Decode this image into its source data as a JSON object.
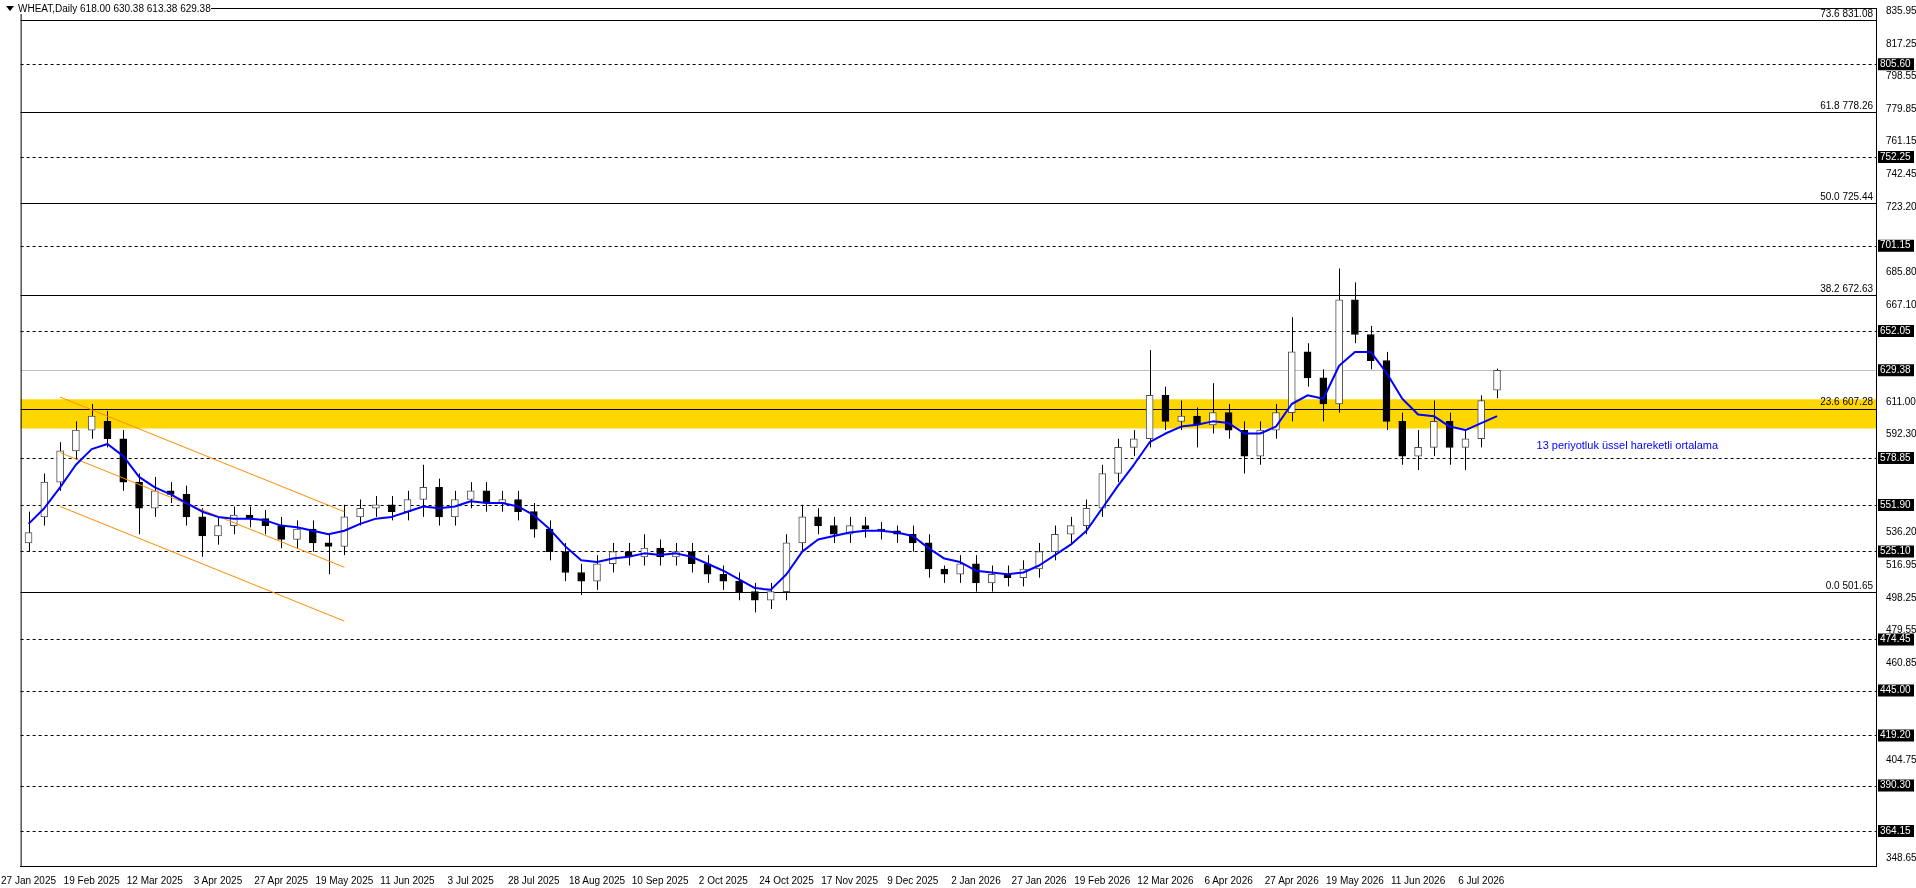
{
  "chart_data": {
    "type": "candlestick",
    "title": "WHEAT,Daily 618.00 630.38 613.38 629.38",
    "categories": [
      "27 Jan 2025",
      null,
      null,
      null,
      "19 Feb 2025",
      null,
      null,
      null,
      "12 Mar 2025",
      null,
      null,
      null,
      "3 Apr 2025",
      null,
      null,
      null,
      "27 Apr 2025",
      null,
      null,
      null,
      "19 May 2025",
      null,
      null,
      null,
      "11 Jun 2025",
      null,
      null,
      null,
      "3 Jul 2025",
      null,
      null,
      null,
      "28 Jul 2025",
      null,
      null,
      null,
      "18 Aug 2025",
      null,
      null,
      null,
      "10 Sep 2025",
      null,
      null,
      null,
      "2 Oct 2025",
      null,
      null,
      null,
      "24 Oct 2025",
      null,
      null,
      null,
      "17 Nov 2025",
      null,
      null,
      null,
      "9 Dec 2025",
      null,
      null,
      null,
      "2 Jan 2026",
      null,
      null,
      null,
      "27 Jan 2026",
      null,
      null,
      null,
      "19 Feb 2026",
      null,
      null,
      null,
      "12 Mar 2026",
      null,
      null,
      null,
      "6 Apr 2026",
      null,
      null,
      null,
      "27 Apr 2026",
      null,
      null,
      null,
      "19 May 2026",
      null,
      null,
      null,
      "11 Jun 2026",
      null,
      null,
      null,
      "6 Jul 2026",
      null
    ],
    "ohlc": [
      [
        530,
        548,
        525,
        536
      ],
      [
        545,
        570,
        540,
        565
      ],
      [
        565,
        588,
        560,
        583
      ],
      [
        583,
        600,
        578,
        595
      ],
      [
        595,
        610,
        590,
        603
      ],
      [
        600,
        606,
        585,
        590
      ],
      [
        590,
        595,
        560,
        565
      ],
      [
        565,
        570,
        535,
        550
      ],
      [
        550,
        568,
        545,
        560
      ],
      [
        560,
        565,
        553,
        558
      ],
      [
        558,
        563,
        540,
        545
      ],
      [
        545,
        550,
        522,
        534
      ],
      [
        534,
        545,
        529,
        540
      ],
      [
        540,
        551,
        535,
        546
      ],
      [
        546,
        551,
        539,
        544
      ],
      [
        544,
        549,
        535,
        540
      ],
      [
        540,
        545,
        527,
        532
      ],
      [
        532,
        543,
        527,
        538
      ],
      [
        538,
        543,
        525,
        530
      ],
      [
        530,
        535,
        512,
        528
      ],
      [
        528,
        552,
        523,
        545
      ],
      [
        545,
        555,
        540,
        550
      ],
      [
        550,
        557,
        545,
        552
      ],
      [
        552,
        557,
        543,
        548
      ],
      [
        548,
        560,
        543,
        555
      ],
      [
        555,
        575,
        545,
        562
      ],
      [
        562,
        567,
        540,
        545
      ],
      [
        545,
        560,
        540,
        555
      ],
      [
        555,
        565,
        550,
        560
      ],
      [
        560,
        565,
        548,
        553
      ],
      [
        553,
        560,
        548,
        555
      ],
      [
        555,
        560,
        543,
        548
      ],
      [
        548,
        553,
        533,
        538
      ],
      [
        538,
        543,
        520,
        525
      ],
      [
        525,
        530,
        508,
        513
      ],
      [
        513,
        518,
        500,
        508
      ],
      [
        508,
        523,
        503,
        518
      ],
      [
        518,
        530,
        513,
        525
      ],
      [
        525,
        530,
        517,
        522
      ],
      [
        522,
        535,
        517,
        527
      ],
      [
        527,
        532,
        517,
        522
      ],
      [
        522,
        530,
        517,
        525
      ],
      [
        525,
        530,
        513,
        518
      ],
      [
        518,
        523,
        507,
        512
      ],
      [
        512,
        517,
        503,
        508
      ],
      [
        508,
        513,
        497,
        502
      ],
      [
        502,
        507,
        490,
        497
      ],
      [
        497,
        507,
        492,
        502
      ],
      [
        502,
        535,
        497,
        530
      ],
      [
        530,
        552,
        525,
        545
      ],
      [
        545,
        550,
        535,
        540
      ],
      [
        540,
        545,
        530,
        535
      ],
      [
        535,
        545,
        530,
        540
      ],
      [
        540,
        545,
        533,
        538
      ],
      [
        538,
        542,
        532,
        537
      ],
      [
        537,
        540,
        530,
        535
      ],
      [
        535,
        540,
        525,
        530
      ],
      [
        530,
        535,
        510,
        515
      ],
      [
        515,
        517,
        507,
        512
      ],
      [
        512,
        523,
        507,
        518
      ],
      [
        518,
        523,
        502,
        507
      ],
      [
        507,
        517,
        502,
        512
      ],
      [
        512,
        517,
        505,
        510
      ],
      [
        510,
        520,
        505,
        515
      ],
      [
        515,
        530,
        510,
        525
      ],
      [
        525,
        540,
        520,
        535
      ],
      [
        535,
        545,
        530,
        540
      ],
      [
        540,
        555,
        535,
        550
      ],
      [
        550,
        575,
        545,
        570
      ],
      [
        570,
        590,
        565,
        585
      ],
      [
        585,
        595,
        580,
        590
      ],
      [
        590,
        641,
        585,
        615
      ],
      [
        615,
        620,
        595,
        600
      ],
      [
        600,
        612,
        595,
        603
      ],
      [
        603,
        608,
        585,
        598
      ],
      [
        598,
        622,
        593,
        605
      ],
      [
        605,
        610,
        590,
        595
      ],
      [
        595,
        600,
        570,
        580
      ],
      [
        580,
        600,
        575,
        595
      ],
      [
        595,
        610,
        590,
        605
      ],
      [
        605,
        660,
        600,
        640
      ],
      [
        640,
        645,
        620,
        625
      ],
      [
        625,
        630,
        600,
        610
      ],
      [
        610,
        688,
        605,
        670
      ],
      [
        670,
        680,
        645,
        650
      ],
      [
        650,
        655,
        630,
        635
      ],
      [
        635,
        640,
        595,
        600
      ],
      [
        600,
        605,
        575,
        580
      ],
      [
        580,
        595,
        572,
        585
      ],
      [
        585,
        612,
        580,
        600
      ],
      [
        600,
        605,
        575,
        585
      ],
      [
        585,
        595,
        572,
        590
      ],
      [
        590,
        615,
        585,
        612
      ],
      [
        618,
        630.38,
        613.38,
        629.38
      ]
    ],
    "series": [
      {
        "type": "line",
        "color": "#0000ff",
        "values": [
          541,
          550,
          562,
          575,
          584,
          587,
          580,
          568,
          562,
          558,
          553,
          548,
          545,
          544,
          544,
          543,
          540,
          539,
          537,
          535,
          537,
          541,
          544,
          545,
          548,
          551,
          550,
          551,
          554,
          553,
          553,
          551,
          546,
          538,
          528,
          520,
          519,
          521,
          522,
          524,
          523,
          524,
          522,
          518,
          514,
          509,
          504,
          503,
          512,
          525,
          532,
          534,
          536,
          537,
          537,
          536,
          534,
          527,
          521,
          519,
          514,
          513,
          512,
          513,
          517,
          523,
          529,
          537,
          550,
          563,
          575,
          588,
          593,
          597,
          598,
          600,
          599,
          593,
          593,
          597,
          610,
          615,
          613,
          632,
          640,
          640,
          628,
          613,
          604,
          603,
          597,
          595,
          599,
          603
        ]
      },
      {
        "type": "line",
        "color": "#ff8c00",
        "values": [
          null,
          null,
          614,
          null,
          null,
          null,
          null,
          null,
          null,
          null,
          null,
          null,
          null,
          null,
          null,
          null,
          null,
          null,
          null,
          null,
          548,
          null,
          null,
          null,
          null,
          null,
          null,
          null,
          null,
          null,
          null,
          null,
          null,
          null,
          null,
          null,
          null,
          null,
          null,
          null,
          null,
          null,
          null,
          null,
          null,
          null,
          null,
          null,
          null,
          null,
          null,
          null,
          null,
          null,
          null,
          null,
          null,
          null,
          null,
          null,
          null,
          null,
          null,
          null,
          null,
          null,
          null,
          null,
          null,
          null,
          null,
          null,
          null,
          null,
          null,
          null,
          null,
          null,
          null,
          null,
          null,
          null,
          null,
          null,
          null,
          null,
          null,
          null,
          null,
          null,
          null,
          null,
          null,
          null
        ]
      },
      {
        "type": "line",
        "color": "#ff8c00",
        "values": [
          null,
          null,
          582,
          null,
          null,
          null,
          null,
          null,
          null,
          null,
          null,
          null,
          null,
          null,
          null,
          null,
          null,
          null,
          null,
          null,
          516,
          null,
          null,
          null,
          null,
          null,
          null,
          null,
          null,
          null,
          null,
          null,
          null,
          null,
          null,
          null,
          null,
          null,
          null,
          null,
          null,
          null,
          null,
          null,
          null,
          null,
          null,
          null,
          null,
          null,
          null,
          null,
          null,
          null,
          null,
          null,
          null,
          null,
          null,
          null,
          null,
          null,
          null,
          null,
          null,
          null,
          null,
          null,
          null,
          null,
          null,
          null,
          null,
          null,
          null,
          null,
          null,
          null,
          null,
          null,
          null,
          null,
          null,
          null,
          null,
          null,
          null,
          null,
          null,
          null,
          null,
          null,
          null,
          null
        ]
      },
      {
        "type": "line",
        "color": "#ff8c00",
        "values": [
          null,
          null,
          551,
          null,
          null,
          null,
          null,
          null,
          null,
          null,
          null,
          null,
          null,
          null,
          null,
          null,
          null,
          null,
          null,
          null,
          485,
          null,
          null,
          null,
          null,
          null,
          null,
          null,
          null,
          null,
          null,
          null,
          null,
          null,
          null,
          null,
          null,
          null,
          null,
          null,
          null,
          null,
          null,
          null,
          null,
          null,
          null,
          null,
          null,
          null,
          null,
          null,
          null,
          null,
          null,
          null,
          null,
          null,
          null,
          null,
          null,
          null,
          null,
          null,
          null,
          null,
          null,
          null,
          null,
          null,
          null,
          null,
          null,
          null,
          null,
          null,
          null,
          null,
          null,
          null,
          null,
          null,
          null,
          null,
          null,
          null,
          null,
          null,
          null,
          null,
          null,
          null,
          null,
          null
        ]
      }
    ],
    "ylim": [
      344,
      838
    ],
    "yticks": [
      835.95,
      817.25,
      798.55,
      779.85,
      761.15,
      742.45,
      {
        "value": 723.2,
        "label": "723.20"
      },
      {
        "value": 685.8,
        "label": "685.80"
      },
      {
        "value": 667.1,
        "label": "667.10"
      },
      {
        "value": 611,
        "label": "611.00"
      },
      {
        "value": 592.3,
        "label": "592.30"
      },
      {
        "value": 536.2,
        "label": "536.20"
      },
      516.95,
      498.25,
      479.55,
      460.85,
      404.75,
      348.65
    ],
    "ref_lines": [
      {
        "axis": "y",
        "value": 831.08,
        "label": "73.6 831.08",
        "line_style": "solid"
      },
      {
        "axis": "y",
        "value": 778.26,
        "label": "61.8 778.26",
        "line_style": "solid"
      },
      {
        "axis": "y",
        "value": 725.44,
        "label": "50.0 725.44",
        "line_style": "solid"
      },
      {
        "axis": "y",
        "value": 672.63,
        "label": "38.2 672.63",
        "line_style": "solid"
      },
      {
        "axis": "y",
        "value": 607.28,
        "label": "23.6 607.28",
        "line_style": "solid"
      },
      {
        "axis": "y",
        "value": 501.65,
        "label": "0.0 501.65",
        "line_style": "solid"
      },
      {
        "axis": "y",
        "value": 629.38,
        "label": "629.38",
        "line_style": "solid",
        "color": "#c0c0c0"
      },
      {
        "axis": "y",
        "value": 805.6,
        "label": "805.60",
        "line_style": "dashed",
        "color": "#000000"
      },
      {
        "axis": "y",
        "value": 752.25,
        "label": "752.25",
        "line_style": "dashed",
        "color": "#000000"
      },
      {
        "axis": "y",
        "value": 701.15,
        "label": "701.15",
        "line_style": "dashed",
        "color": "#000000"
      },
      {
        "axis": "y",
        "value": 652.05,
        "label": "652.05",
        "line_style": "dashed",
        "color": "#000000"
      },
      {
        "axis": "y",
        "value": 578.85,
        "label": "578.85",
        "line_style": "dashed",
        "color": "#000000"
      },
      {
        "axis": "y",
        "value": 551.9,
        "label": "551.90",
        "line_style": "dashed",
        "color": "#000000"
      },
      {
        "axis": "y",
        "value": 525.1,
        "label": "525.10",
        "line_style": "dashed",
        "color": "#000000"
      },
      {
        "axis": "y",
        "value": 474.45,
        "label": "474.45",
        "line_style": "dashed",
        "color": "#000000"
      },
      {
        "axis": "y",
        "value": 445,
        "label": "445.00",
        "line_style": "dashed",
        "color": "#000000"
      },
      {
        "axis": "y",
        "value": 419.2,
        "label": "419.20",
        "line_style": "dashed",
        "color": "#000000"
      },
      {
        "axis": "y",
        "value": 390.3,
        "label": "390.30",
        "line_style": "dashed",
        "color": "#000000"
      },
      {
        "axis": "y",
        "value": 364.15,
        "label": "364.15",
        "line_style": "dashed",
        "color": "#000000"
      }
    ],
    "bands": [
      {
        "axis": "y",
        "from": 595.9,
        "to": 612.8,
        "color": "#ffd700"
      }
    ],
    "annotations": [
      "13 periyotluk üssel hareketli ortalama"
    ],
    "legend": false,
    "grid": false
  }
}
